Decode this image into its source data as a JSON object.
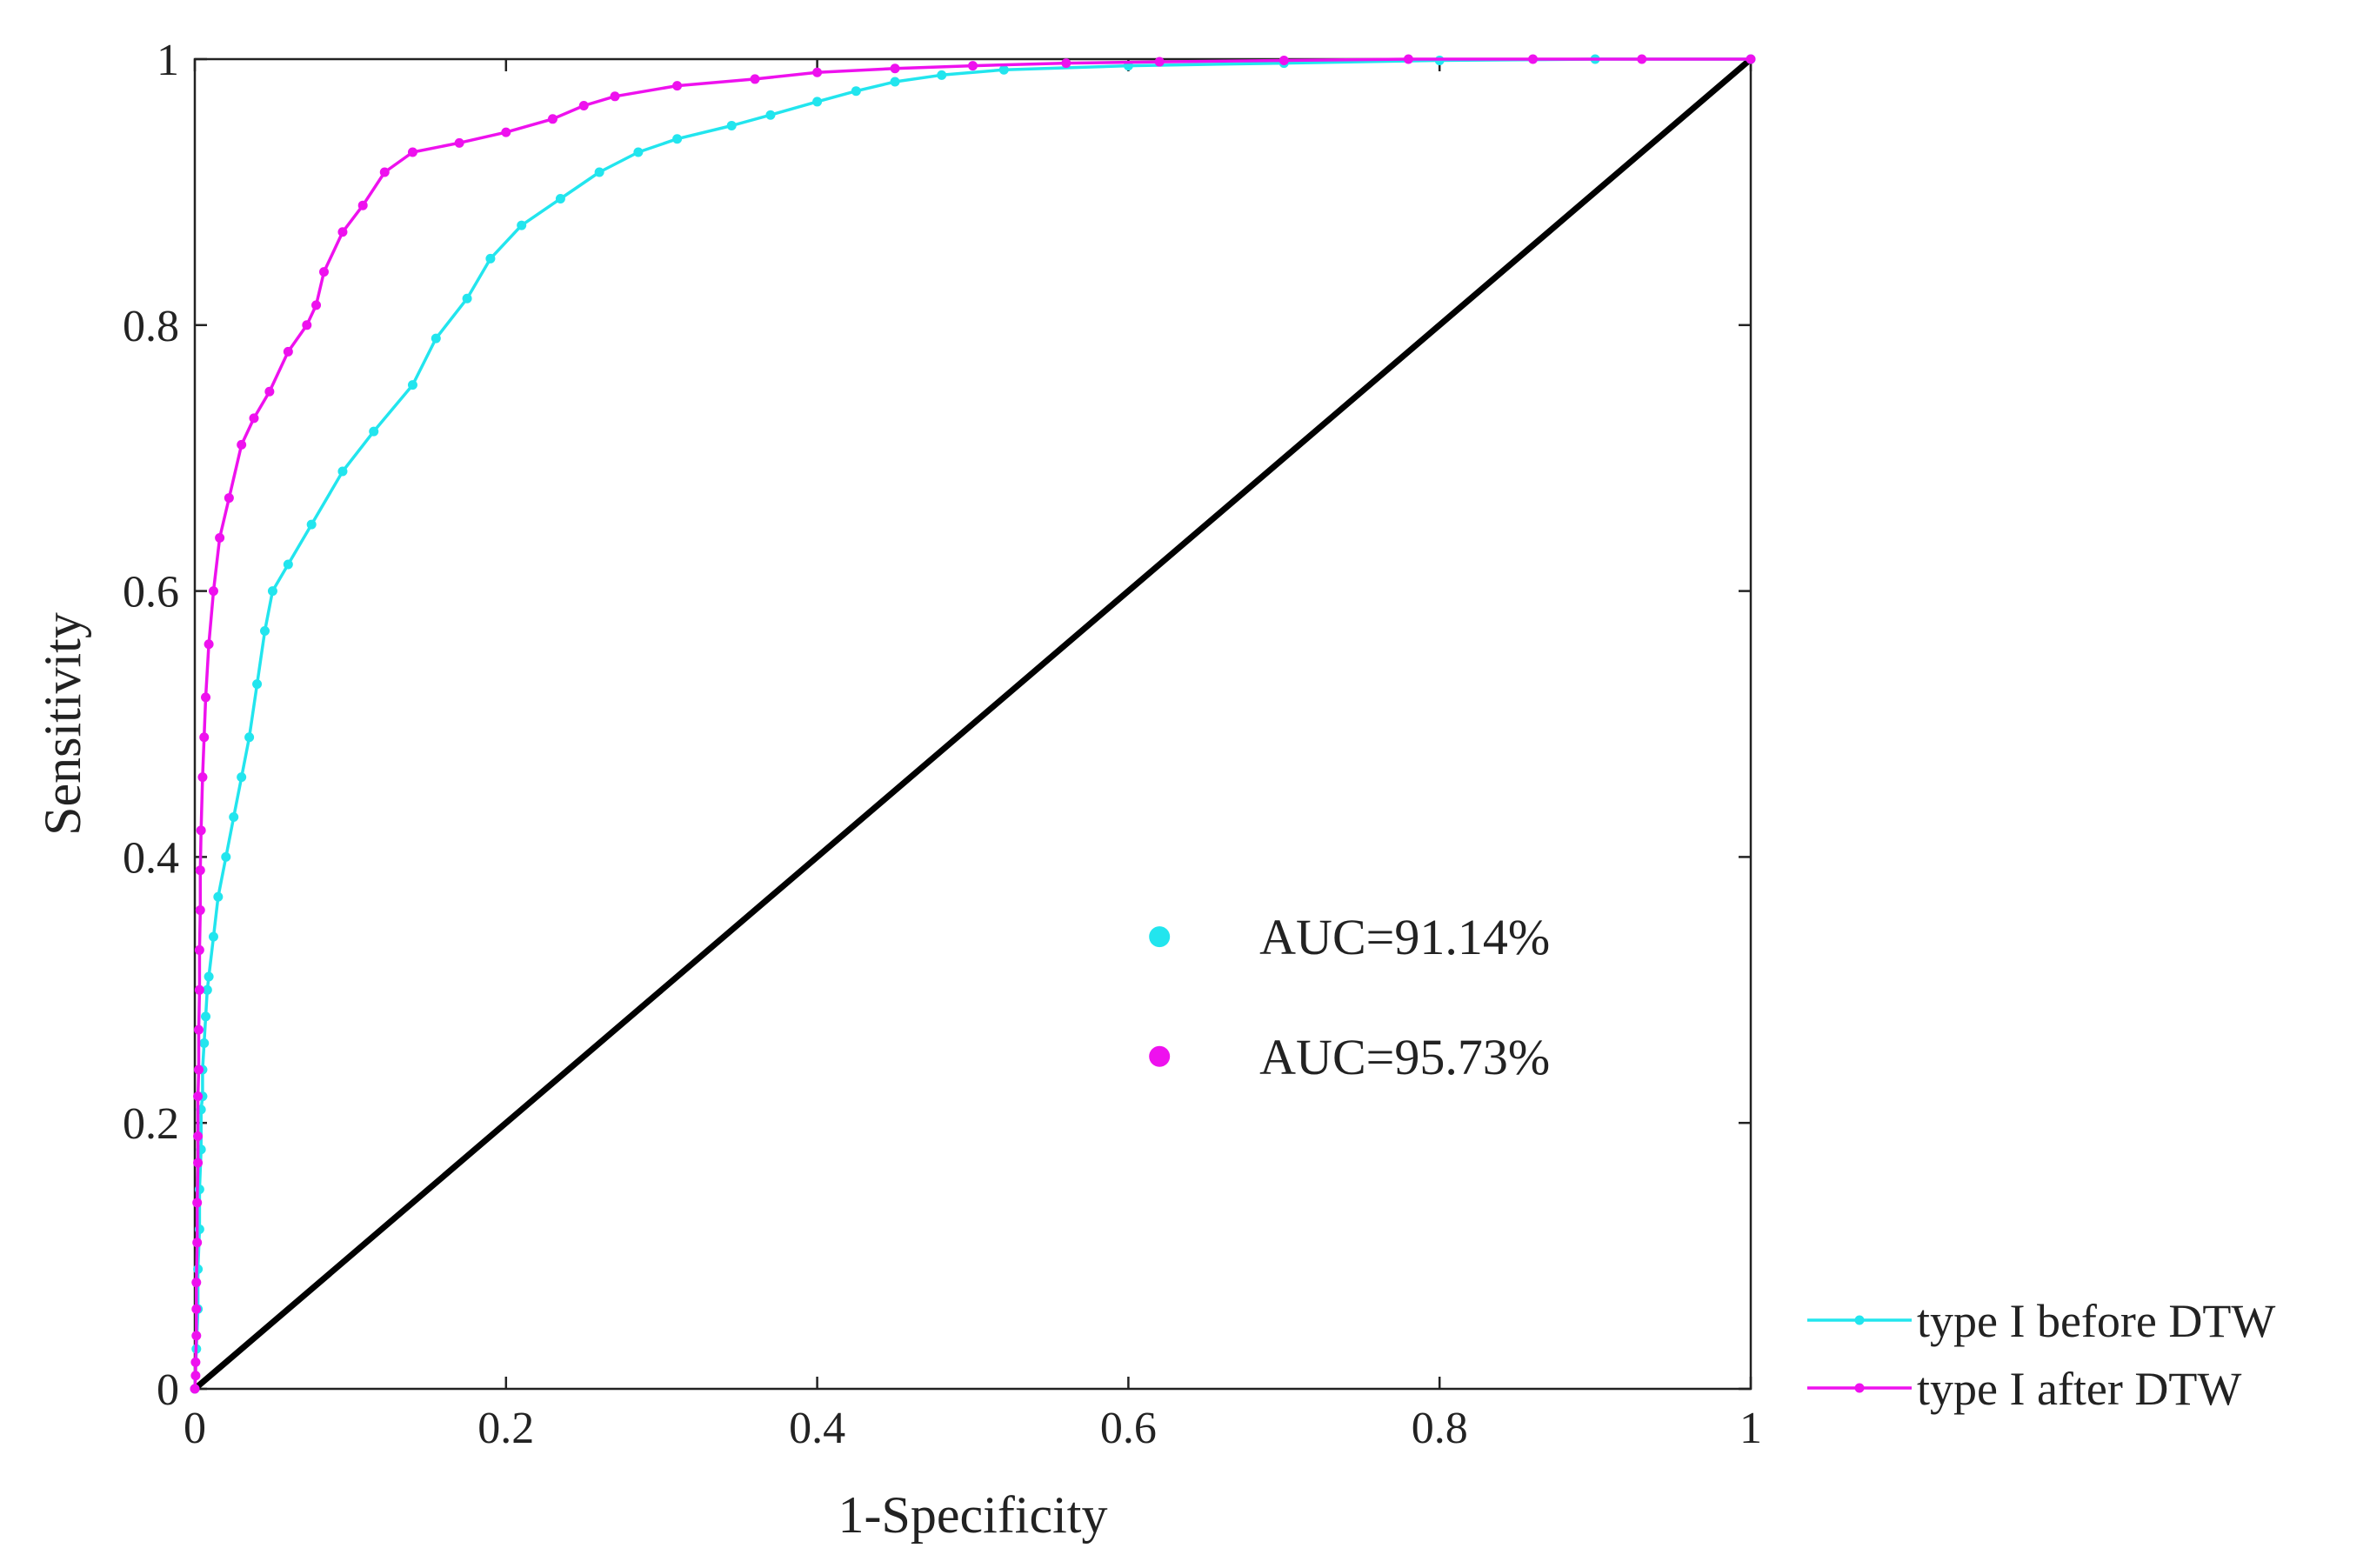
{
  "chart_data": {
    "type": "line",
    "title": "",
    "xlabel": "1-Specificity",
    "ylabel": "Sensitivity",
    "xlim": [
      0,
      1
    ],
    "ylim": [
      0,
      1
    ],
    "xticks": [
      0,
      0.2,
      0.4,
      0.6,
      0.8,
      1
    ],
    "yticks": [
      0,
      0.2,
      0.4,
      0.6,
      0.8,
      1
    ],
    "xtick_labels": [
      "0",
      "0.2",
      "0.4",
      "0.6",
      "0.8",
      "1"
    ],
    "ytick_labels": [
      "0",
      "0.2",
      "0.4",
      "0.6",
      "0.8",
      "1"
    ],
    "grid": false,
    "legend_position": "outside-bottom-right",
    "colors": {
      "before": "#22e5ee",
      "after": "#ee11ee",
      "diagonal": "#000000",
      "axis": "#222222"
    },
    "series": [
      {
        "name": "type I before DTW",
        "key": "before",
        "x": [
          0,
          0.001,
          0.002,
          0.002,
          0.003,
          0.003,
          0.004,
          0.004,
          0.005,
          0.005,
          0.006,
          0.007,
          0.008,
          0.009,
          0.012,
          0.015,
          0.02,
          0.025,
          0.03,
          0.035,
          0.04,
          0.045,
          0.05,
          0.06,
          0.075,
          0.095,
          0.115,
          0.14,
          0.155,
          0.175,
          0.19,
          0.21,
          0.235,
          0.26,
          0.285,
          0.31,
          0.345,
          0.37,
          0.4,
          0.425,
          0.45,
          0.48,
          0.52,
          0.6,
          0.7,
          0.8,
          0.9,
          1.0
        ],
        "y": [
          0,
          0.03,
          0.06,
          0.09,
          0.12,
          0.15,
          0.18,
          0.21,
          0.22,
          0.24,
          0.26,
          0.28,
          0.3,
          0.31,
          0.34,
          0.37,
          0.4,
          0.43,
          0.46,
          0.49,
          0.53,
          0.57,
          0.6,
          0.62,
          0.65,
          0.69,
          0.72,
          0.755,
          0.79,
          0.82,
          0.85,
          0.875,
          0.895,
          0.915,
          0.93,
          0.94,
          0.95,
          0.958,
          0.968,
          0.976,
          0.983,
          0.988,
          0.992,
          0.995,
          0.997,
          0.999,
          1.0,
          1.0
        ]
      },
      {
        "name": "type I after DTW",
        "key": "after",
        "x": [
          0,
          0.0005,
          0.0005,
          0.001,
          0.001,
          0.001,
          0.0015,
          0.0015,
          0.002,
          0.002,
          0.002,
          0.0025,
          0.0025,
          0.003,
          0.003,
          0.0035,
          0.0035,
          0.004,
          0.005,
          0.006,
          0.007,
          0.009,
          0.012,
          0.016,
          0.022,
          0.03,
          0.038,
          0.048,
          0.06,
          0.072,
          0.078,
          0.083,
          0.095,
          0.108,
          0.122,
          0.14,
          0.17,
          0.2,
          0.23,
          0.25,
          0.27,
          0.31,
          0.36,
          0.4,
          0.45,
          0.5,
          0.56,
          0.62,
          0.7,
          0.78,
          0.86,
          0.93,
          1.0
        ],
        "y": [
          0,
          0.01,
          0.02,
          0.04,
          0.06,
          0.08,
          0.11,
          0.14,
          0.17,
          0.19,
          0.22,
          0.24,
          0.27,
          0.3,
          0.33,
          0.36,
          0.39,
          0.42,
          0.46,
          0.49,
          0.52,
          0.56,
          0.6,
          0.64,
          0.67,
          0.71,
          0.73,
          0.75,
          0.78,
          0.8,
          0.815,
          0.84,
          0.87,
          0.89,
          0.915,
          0.93,
          0.937,
          0.945,
          0.955,
          0.965,
          0.972,
          0.98,
          0.985,
          0.99,
          0.993,
          0.995,
          0.997,
          0.998,
          0.999,
          1.0,
          1.0,
          1.0,
          1.0
        ]
      }
    ],
    "reference_line": {
      "name": "chance diagonal",
      "x": [
        0,
        1
      ],
      "y": [
        0,
        1
      ]
    },
    "annotations": [
      {
        "text": "AUC=91.14%",
        "key": "before",
        "x": 0.62,
        "y": 0.34
      },
      {
        "text": "AUC=95.73%",
        "key": "after",
        "x": 0.62,
        "y": 0.25
      }
    ]
  }
}
